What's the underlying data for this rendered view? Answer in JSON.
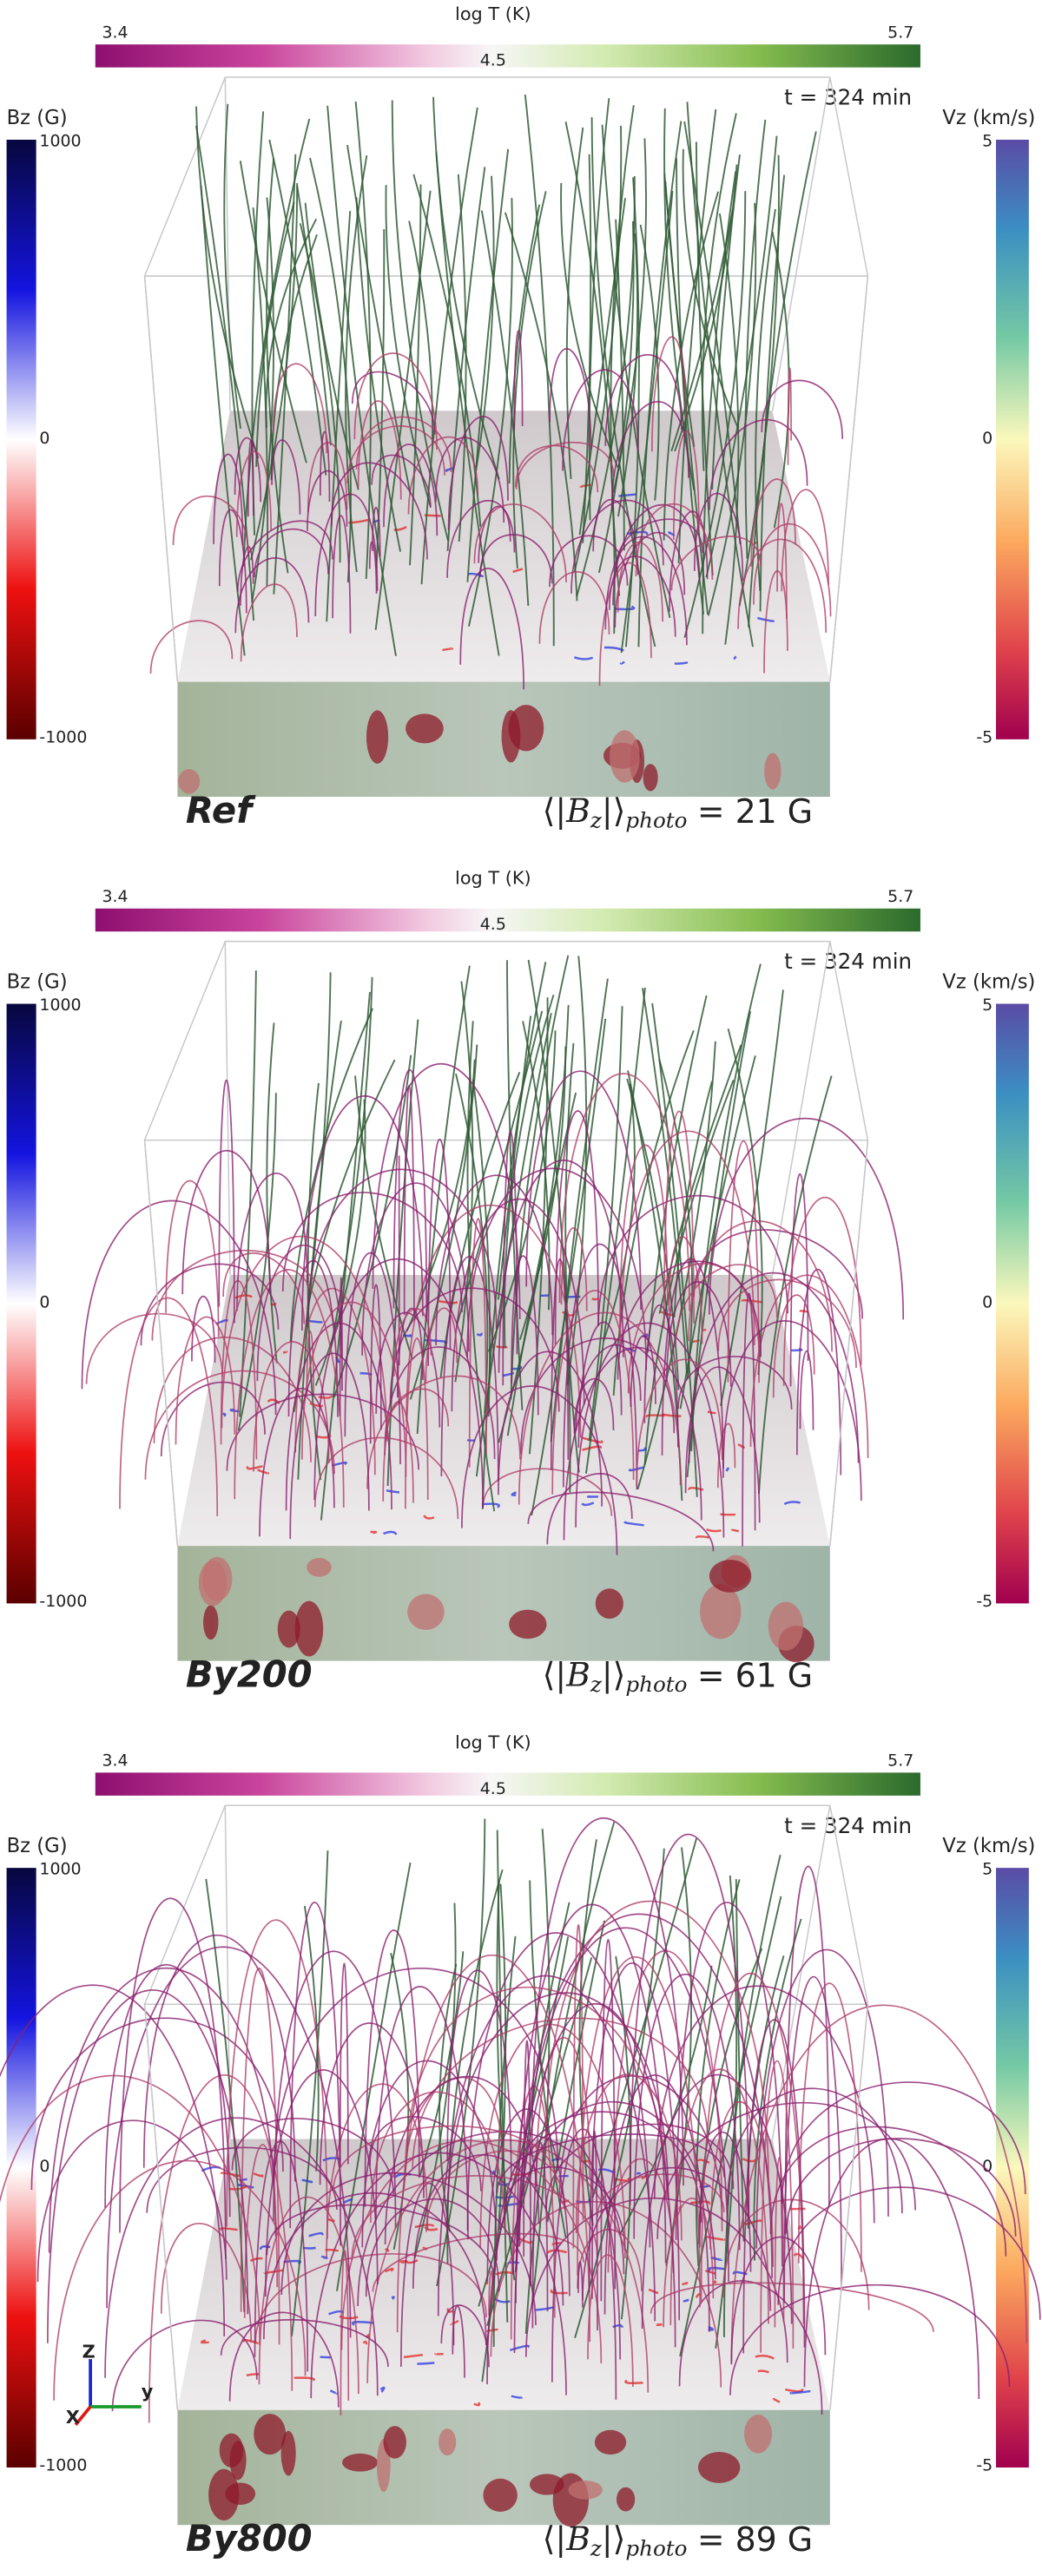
{
  "panels": [
    {
      "temperature_colorbar": {
        "label": "log T (K)",
        "ticks": [
          3.4,
          4.5,
          5.7
        ]
      },
      "bz_colorbar": {
        "label": "Bz (G)",
        "ticks": [
          1000,
          0,
          -1000
        ]
      },
      "vz_colorbar": {
        "label": "Vz (km/s)",
        "ticks": [
          5,
          0,
          -5
        ]
      },
      "time": "t = 324 min",
      "name": "Ref",
      "name_color": "#111111",
      "mean_field": {
        "open": "⟨|",
        "symbol": "B",
        "subscript": "z",
        "close": "|⟩",
        "label": "photo",
        "value": "= 21 G"
      }
    },
    {
      "temperature_colorbar": {
        "label": "log T (K)",
        "ticks": [
          3.4,
          4.5,
          5.7
        ]
      },
      "bz_colorbar": {
        "label": "Bz (G)",
        "ticks": [
          1000,
          0,
          -1000
        ]
      },
      "vz_colorbar": {
        "label": "Vz (km/s)",
        "ticks": [
          5,
          0,
          -5
        ]
      },
      "time": "t = 324 min",
      "name": "By200",
      "name_color": "#e8231f",
      "mean_field": {
        "open": "⟨|",
        "symbol": "B",
        "subscript": "z",
        "close": "|⟩",
        "label": "photo",
        "value": "= 61 G"
      }
    },
    {
      "temperature_colorbar": {
        "label": "log T (K)",
        "ticks": [
          3.4,
          4.5,
          5.7
        ]
      },
      "bz_colorbar": {
        "label": "Bz (G)",
        "ticks": [
          1000,
          0,
          -1000
        ]
      },
      "vz_colorbar": {
        "label": "Vz (km/s)",
        "ticks": [
          5,
          0,
          -5
        ]
      },
      "time": "t = 324 min",
      "name": "By800",
      "name_color": "#2fd14a",
      "mean_field": {
        "open": "⟨|",
        "symbol": "B",
        "subscript": "z",
        "close": "|⟩",
        "label": "photo",
        "value": "= 89 G"
      },
      "axes_triad": {
        "z": "Z",
        "y": "y",
        "x": "X"
      }
    }
  ]
}
